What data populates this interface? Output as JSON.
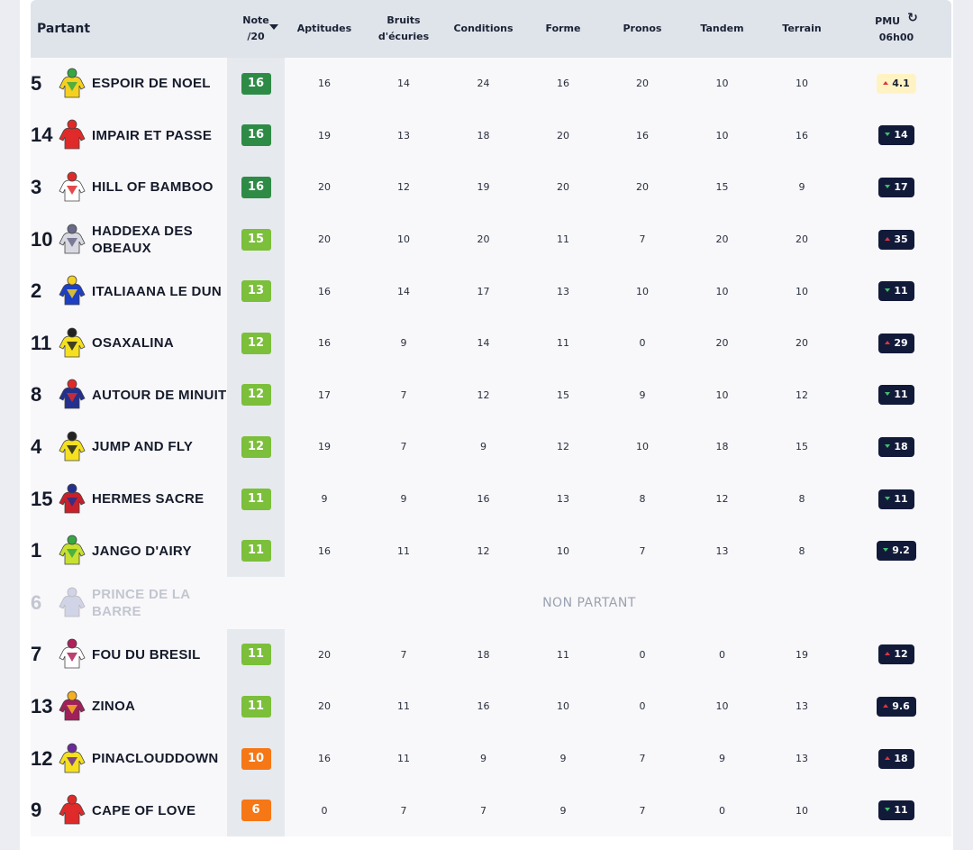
{
  "header": {
    "partant": "Partant",
    "note": "Note",
    "note_sub": "/20",
    "aptitudes": "Aptitudes",
    "bruits_l1": "Bruits",
    "bruits_l2": "d'écuries",
    "conditions": "Conditions",
    "forme": "Forme",
    "pronos": "Pronos",
    "tandem": "Tandem",
    "terrain": "Terrain",
    "pmu": "PMU",
    "pmu_time": "06h00"
  },
  "colors": {
    "note_dark_green": "#2e8b46",
    "note_light_green": "#7bbf3a",
    "note_orange": "#f57716",
    "pmu_navy": "#121a3a",
    "pmu_light": "#fff3c4",
    "odds_up": "#e0343f",
    "odds_down": "#3ec16b"
  },
  "non_partant_label": "NON PARTANT",
  "rows": [
    {
      "num": "5",
      "name1": "ESPOIR DE NOEL",
      "name2": "",
      "note": "16",
      "note_level": "dark",
      "apt": "16",
      "bruits": "14",
      "cond": "24",
      "forme": "16",
      "pronos": "20",
      "tandem": "10",
      "terrain": "10",
      "pmu": "4.1",
      "trend": "up",
      "light": true,
      "silk": [
        "#f5d020",
        "#36a842"
      ]
    },
    {
      "num": "14",
      "name1": "IMPAIR ET PASSE",
      "name2": "",
      "note": "16",
      "note_level": "dark",
      "apt": "19",
      "bruits": "13",
      "cond": "18",
      "forme": "20",
      "pronos": "16",
      "tandem": "10",
      "terrain": "16",
      "pmu": "14",
      "trend": "down",
      "light": false,
      "silk": [
        "#e02a2a",
        "#e02a2a"
      ]
    },
    {
      "num": "3",
      "name1": "HILL OF BAMBOO",
      "name2": "",
      "note": "16",
      "note_level": "dark",
      "apt": "20",
      "bruits": "12",
      "cond": "19",
      "forme": "20",
      "pronos": "20",
      "tandem": "15",
      "terrain": "9",
      "pmu": "17",
      "trend": "down",
      "light": false,
      "silk": [
        "#ffffff",
        "#e02a2a"
      ]
    },
    {
      "num": "10",
      "name1": "HADDEXA DES",
      "name2": "OBEAUX",
      "note": "15",
      "note_level": "light",
      "apt": "20",
      "bruits": "10",
      "cond": "20",
      "forme": "11",
      "pronos": "7",
      "tandem": "20",
      "terrain": "20",
      "pmu": "35",
      "trend": "up",
      "light": false,
      "silk": [
        "#d8d8e0",
        "#6a6a8a"
      ]
    },
    {
      "num": "2",
      "name1": "ITALIAANA LE DUN",
      "name2": "",
      "note": "13",
      "note_level": "light",
      "apt": "16",
      "bruits": "14",
      "cond": "17",
      "forme": "13",
      "pronos": "10",
      "tandem": "10",
      "terrain": "10",
      "pmu": "11",
      "trend": "down",
      "light": false,
      "silk": [
        "#1d3fc4",
        "#f5d020"
      ]
    },
    {
      "num": "11",
      "name1": "OSAXALINA",
      "name2": "",
      "note": "12",
      "note_level": "light",
      "apt": "16",
      "bruits": "9",
      "cond": "14",
      "forme": "11",
      "pronos": "0",
      "tandem": "20",
      "terrain": "20",
      "pmu": "29",
      "trend": "up",
      "light": false,
      "silk": [
        "#f5e020",
        "#222222"
      ]
    },
    {
      "num": "8",
      "name1": "AUTOUR DE MINUIT",
      "name2": "",
      "note": "12",
      "note_level": "light",
      "apt": "17",
      "bruits": "7",
      "cond": "12",
      "forme": "15",
      "pronos": "9",
      "tandem": "10",
      "terrain": "12",
      "pmu": "11",
      "trend": "down",
      "light": false,
      "silk": [
        "#23308f",
        "#e02a2a"
      ]
    },
    {
      "num": "4",
      "name1": "JUMP AND FLY",
      "name2": "",
      "note": "12",
      "note_level": "light",
      "apt": "19",
      "bruits": "7",
      "cond": "9",
      "forme": "12",
      "pronos": "10",
      "tandem": "18",
      "terrain": "15",
      "pmu": "18",
      "trend": "down",
      "light": false,
      "silk": [
        "#f5e020",
        "#222222"
      ]
    },
    {
      "num": "15",
      "name1": "HERMES SACRE",
      "name2": "",
      "note": "11",
      "note_level": "light",
      "apt": "9",
      "bruits": "9",
      "cond": "16",
      "forme": "13",
      "pronos": "8",
      "tandem": "12",
      "terrain": "8",
      "pmu": "11",
      "trend": "down",
      "light": false,
      "silk": [
        "#c8202a",
        "#23308f"
      ]
    },
    {
      "num": "1",
      "name1": "JANGO D'AIRY",
      "name2": "",
      "note": "11",
      "note_level": "light",
      "apt": "16",
      "bruits": "11",
      "cond": "12",
      "forme": "10",
      "pronos": "7",
      "tandem": "13",
      "terrain": "8",
      "pmu": "9.2",
      "trend": "down",
      "light": false,
      "silk": [
        "#c8e030",
        "#36a842"
      ]
    },
    {
      "num": "6",
      "name1": "PRINCE DE LA",
      "name2": "BARRE",
      "np": true,
      "silk": [
        "#8a8fc4",
        "#8a8fc4"
      ]
    },
    {
      "num": "7",
      "name1": "FOU DU BRESIL",
      "name2": "",
      "note": "11",
      "note_level": "light",
      "apt": "20",
      "bruits": "7",
      "cond": "18",
      "forme": "11",
      "pronos": "0",
      "tandem": "0",
      "terrain": "19",
      "pmu": "12",
      "trend": "up",
      "light": false,
      "silk": [
        "#ffffff",
        "#b0205a"
      ]
    },
    {
      "num": "13",
      "name1": "ZINOA",
      "name2": "",
      "note": "11",
      "note_level": "light",
      "apt": "20",
      "bruits": "11",
      "cond": "16",
      "forme": "10",
      "pronos": "0",
      "tandem": "10",
      "terrain": "13",
      "pmu": "9.6",
      "trend": "up",
      "light": false,
      "silk": [
        "#a0205a",
        "#f5b020"
      ]
    },
    {
      "num": "12",
      "name1": "PINACLOUDDOWN",
      "name2": "",
      "note": "10",
      "note_level": "orange",
      "apt": "16",
      "bruits": "11",
      "cond": "9",
      "forme": "9",
      "pronos": "7",
      "tandem": "9",
      "terrain": "13",
      "pmu": "18",
      "trend": "up",
      "light": false,
      "silk": [
        "#f5e020",
        "#6a2a9a"
      ]
    },
    {
      "num": "9",
      "name1": "CAPE OF LOVE",
      "name2": "",
      "note": "6",
      "note_level": "orange",
      "apt": "0",
      "bruits": "7",
      "cond": "7",
      "forme": "9",
      "pronos": "7",
      "tandem": "0",
      "terrain": "10",
      "pmu": "11",
      "trend": "down",
      "light": false,
      "silk": [
        "#e02a2a",
        "#e02a2a"
      ]
    }
  ]
}
